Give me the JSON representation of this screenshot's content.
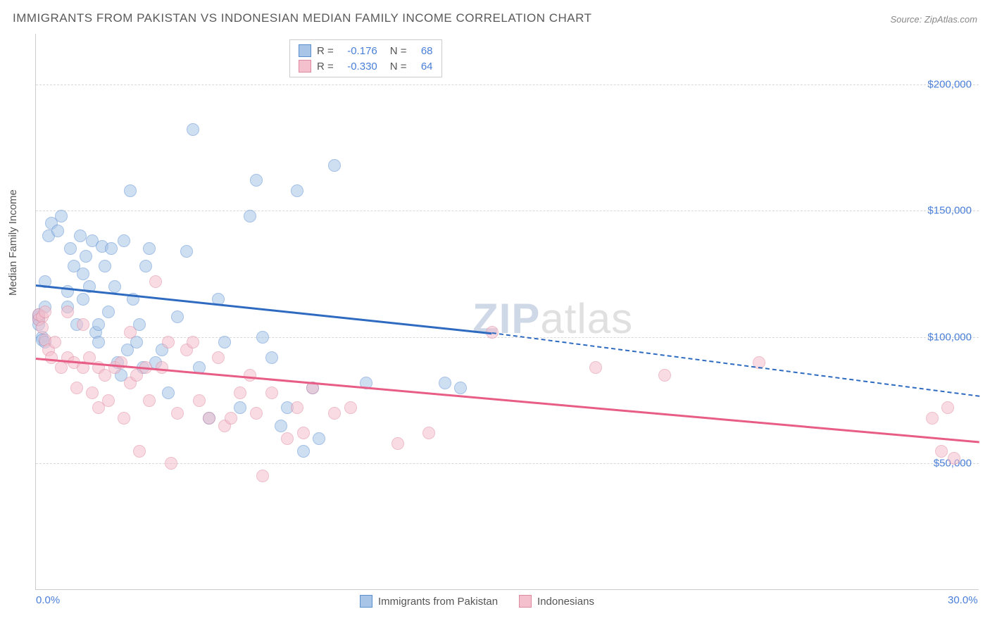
{
  "title": "IMMIGRANTS FROM PAKISTAN VS INDONESIAN MEDIAN FAMILY INCOME CORRELATION CHART",
  "source_prefix": "Source: ",
  "source_name": "ZipAtlas.com",
  "ylabel": "Median Family Income",
  "watermark_bold": "ZIP",
  "watermark_rest": "atlas",
  "chart": {
    "type": "scatter",
    "xlim": [
      0,
      30
    ],
    "ylim": [
      0,
      220000
    ],
    "yticks": [
      50000,
      100000,
      150000,
      200000
    ],
    "ytick_labels": [
      "$50,000",
      "$100,000",
      "$150,000",
      "$200,000"
    ],
    "xticks": [
      0,
      30
    ],
    "xtick_labels": [
      "0.0%",
      "30.0%"
    ],
    "grid_color": "#d8d8d8",
    "background_color": "#ffffff",
    "axis_color": "#cccccc",
    "label_color": "#4a7fd8",
    "title_fontsize": 17,
    "label_fontsize": 15,
    "point_radius": 9,
    "point_opacity": 0.55,
    "series": [
      {
        "name": "Immigrants from Pakistan",
        "fill_color": "#a8c5e8",
        "stroke_color": "#5a8fd0",
        "line_color": "#2e6bc0",
        "R": "-0.176",
        "N": "68",
        "trend": {
          "x1": 0,
          "y1": 121000,
          "x2": 14.5,
          "y2": 102000,
          "dash_x2": 30,
          "dash_y2": 77000
        },
        "points": [
          [
            0.1,
            108000
          ],
          [
            0.1,
            109000
          ],
          [
            0.1,
            107000
          ],
          [
            0.1,
            105000
          ],
          [
            0.2,
            100000
          ],
          [
            0.2,
            99000
          ],
          [
            0.3,
            112000
          ],
          [
            0.3,
            122000
          ],
          [
            0.3,
            98000
          ],
          [
            0.4,
            140000
          ],
          [
            0.5,
            145000
          ],
          [
            0.7,
            142000
          ],
          [
            0.8,
            148000
          ],
          [
            1.0,
            118000
          ],
          [
            1.0,
            112000
          ],
          [
            1.1,
            135000
          ],
          [
            1.2,
            128000
          ],
          [
            1.3,
            105000
          ],
          [
            1.4,
            140000
          ],
          [
            1.5,
            125000
          ],
          [
            1.5,
            115000
          ],
          [
            1.6,
            132000
          ],
          [
            1.7,
            120000
          ],
          [
            1.8,
            138000
          ],
          [
            1.9,
            102000
          ],
          [
            2.0,
            105000
          ],
          [
            2.0,
            98000
          ],
          [
            2.1,
            136000
          ],
          [
            2.2,
            128000
          ],
          [
            2.3,
            110000
          ],
          [
            2.4,
            135000
          ],
          [
            2.5,
            120000
          ],
          [
            2.6,
            90000
          ],
          [
            2.7,
            85000
          ],
          [
            2.8,
            138000
          ],
          [
            2.9,
            95000
          ],
          [
            3.0,
            158000
          ],
          [
            3.1,
            115000
          ],
          [
            3.2,
            98000
          ],
          [
            3.3,
            105000
          ],
          [
            3.4,
            88000
          ],
          [
            3.5,
            128000
          ],
          [
            3.6,
            135000
          ],
          [
            3.8,
            90000
          ],
          [
            4.0,
            95000
          ],
          [
            4.2,
            78000
          ],
          [
            4.5,
            108000
          ],
          [
            4.8,
            134000
          ],
          [
            5.0,
            182000
          ],
          [
            5.2,
            88000
          ],
          [
            5.5,
            68000
          ],
          [
            5.8,
            115000
          ],
          [
            6.0,
            98000
          ],
          [
            6.5,
            72000
          ],
          [
            6.8,
            148000
          ],
          [
            7.0,
            162000
          ],
          [
            7.2,
            100000
          ],
          [
            7.5,
            92000
          ],
          [
            7.8,
            65000
          ],
          [
            8.0,
            72000
          ],
          [
            8.3,
            158000
          ],
          [
            8.5,
            55000
          ],
          [
            8.8,
            80000
          ],
          [
            9.0,
            60000
          ],
          [
            9.5,
            168000
          ],
          [
            10.5,
            82000
          ],
          [
            13.0,
            82000
          ],
          [
            13.5,
            80000
          ]
        ]
      },
      {
        "name": "Indonesians",
        "fill_color": "#f5c0cd",
        "stroke_color": "#e08aa0",
        "line_color": "#e85d85",
        "R": "-0.330",
        "N": "64",
        "trend": {
          "x1": 0,
          "y1": 92000,
          "x2": 30,
          "y2": 59000
        },
        "points": [
          [
            0.1,
            107000
          ],
          [
            0.1,
            109000
          ],
          [
            0.2,
            108000
          ],
          [
            0.2,
            104000
          ],
          [
            0.3,
            110000
          ],
          [
            0.3,
            99000
          ],
          [
            0.4,
            95000
          ],
          [
            0.5,
            92000
          ],
          [
            0.6,
            98000
          ],
          [
            0.8,
            88000
          ],
          [
            1.0,
            110000
          ],
          [
            1.0,
            92000
          ],
          [
            1.2,
            90000
          ],
          [
            1.3,
            80000
          ],
          [
            1.5,
            88000
          ],
          [
            1.5,
            105000
          ],
          [
            1.7,
            92000
          ],
          [
            1.8,
            78000
          ],
          [
            2.0,
            88000
          ],
          [
            2.0,
            72000
          ],
          [
            2.2,
            85000
          ],
          [
            2.3,
            75000
          ],
          [
            2.5,
            88000
          ],
          [
            2.7,
            90000
          ],
          [
            2.8,
            68000
          ],
          [
            3.0,
            102000
          ],
          [
            3.0,
            82000
          ],
          [
            3.2,
            85000
          ],
          [
            3.3,
            55000
          ],
          [
            3.5,
            88000
          ],
          [
            3.6,
            75000
          ],
          [
            3.8,
            122000
          ],
          [
            4.0,
            88000
          ],
          [
            4.2,
            98000
          ],
          [
            4.3,
            50000
          ],
          [
            4.5,
            70000
          ],
          [
            4.8,
            95000
          ],
          [
            5.0,
            98000
          ],
          [
            5.2,
            75000
          ],
          [
            5.5,
            68000
          ],
          [
            5.8,
            92000
          ],
          [
            6.0,
            65000
          ],
          [
            6.2,
            68000
          ],
          [
            6.5,
            78000
          ],
          [
            6.8,
            85000
          ],
          [
            7.0,
            70000
          ],
          [
            7.2,
            45000
          ],
          [
            7.5,
            78000
          ],
          [
            8.0,
            60000
          ],
          [
            8.3,
            72000
          ],
          [
            8.5,
            62000
          ],
          [
            8.8,
            80000
          ],
          [
            9.5,
            70000
          ],
          [
            10.0,
            72000
          ],
          [
            11.5,
            58000
          ],
          [
            12.5,
            62000
          ],
          [
            14.5,
            102000
          ],
          [
            17.8,
            88000
          ],
          [
            20.0,
            85000
          ],
          [
            23.0,
            90000
          ],
          [
            28.5,
            68000
          ],
          [
            28.8,
            55000
          ],
          [
            29.0,
            72000
          ],
          [
            29.2,
            52000
          ]
        ]
      }
    ]
  },
  "legend_top": {
    "R_label": "R =",
    "N_label": "N ="
  }
}
